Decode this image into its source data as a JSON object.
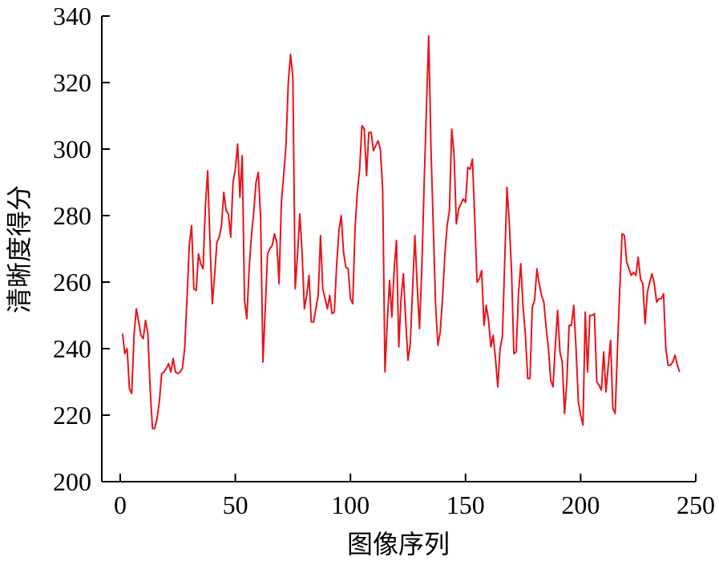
{
  "chart_data": {
    "type": "line",
    "xlabel": "图像序列",
    "ylabel": "清晰度得分",
    "xlim": [
      -8,
      250
    ],
    "ylim": [
      200,
      340
    ],
    "xticks": [
      0,
      50,
      100,
      150,
      200,
      250
    ],
    "yticks": [
      200,
      220,
      240,
      260,
      280,
      300,
      320,
      340
    ],
    "grid": false,
    "legend": "none",
    "series": [
      {
        "color": "#e8141c",
        "x": [
          1,
          2,
          3,
          4,
          5,
          6,
          7,
          8,
          9,
          10,
          11,
          12,
          13,
          14,
          15,
          16,
          17,
          18,
          19,
          20,
          21,
          22,
          23,
          24,
          25,
          26,
          27,
          28,
          29,
          30,
          31,
          32,
          33,
          34,
          35,
          36,
          37,
          38,
          39,
          40,
          41,
          42,
          43,
          44,
          45,
          46,
          47,
          48,
          49,
          50,
          51,
          52,
          53,
          54,
          55,
          56,
          57,
          58,
          59,
          60,
          61,
          62,
          63,
          64,
          65,
          66,
          67,
          68,
          69,
          70,
          71,
          72,
          73,
          74,
          75,
          76,
          77,
          78,
          79,
          80,
          81,
          82,
          83,
          84,
          85,
          86,
          87,
          88,
          89,
          90,
          91,
          92,
          93,
          94,
          95,
          96,
          97,
          98,
          99,
          100,
          101,
          102,
          103,
          104,
          105,
          106,
          107,
          108,
          109,
          110,
          111,
          112,
          113,
          114,
          115,
          116,
          117,
          118,
          119,
          120,
          121,
          122,
          123,
          124,
          125,
          126,
          127,
          128,
          129,
          130,
          131,
          132,
          133,
          134,
          135,
          136,
          137,
          138,
          139,
          140,
          141,
          142,
          143,
          144,
          145,
          146,
          147,
          148,
          149,
          150,
          151,
          152,
          153,
          154,
          155,
          156,
          157,
          158,
          159,
          160,
          161,
          162,
          163,
          164,
          165,
          166,
          167,
          168,
          169,
          170,
          171,
          172,
          173,
          174,
          175,
          176,
          177,
          178,
          179,
          180,
          181,
          182,
          183,
          184,
          185,
          186,
          187,
          188,
          189,
          190,
          191,
          192,
          193,
          194,
          195,
          196,
          197,
          198,
          199,
          200,
          201,
          202,
          203,
          204,
          205,
          206,
          207,
          208,
          209,
          210,
          211,
          212,
          213,
          214,
          215,
          216,
          217,
          218,
          219,
          220,
          221,
          222,
          223,
          224,
          225,
          226,
          227,
          228,
          229,
          230,
          231,
          232,
          233,
          234,
          235,
          236,
          237,
          238,
          239,
          240,
          241,
          242,
          243
        ],
        "y": [
          244.5,
          238.5,
          240,
          228,
          226.5,
          244,
          252,
          248,
          244,
          243,
          248.5,
          244.5,
          228,
          216,
          216,
          219,
          224,
          232.5,
          233,
          234,
          235.5,
          233,
          237,
          233,
          232.5,
          233,
          234,
          240,
          255,
          271,
          277,
          258,
          257.5,
          268.5,
          265.5,
          264,
          283,
          293.5,
          272,
          253.5,
          262,
          272,
          273.5,
          277,
          287,
          281.5,
          280.5,
          273.5,
          290,
          294,
          301.5,
          285.5,
          298,
          254.5,
          249,
          264,
          274,
          281,
          290,
          293,
          279,
          236,
          252,
          268.5,
          270,
          271,
          274.5,
          272,
          259.5,
          284,
          292,
          301,
          320,
          328.5,
          321.5,
          258,
          268,
          280.5,
          269,
          252,
          256,
          262,
          248,
          248,
          252,
          256,
          274,
          258,
          255,
          252,
          256,
          250.5,
          251,
          265,
          275.5,
          280,
          269,
          264.5,
          264,
          255,
          253.5,
          276,
          287,
          294,
          307,
          306,
          292,
          305,
          305,
          299.5,
          301,
          302.5,
          300,
          288,
          233,
          248,
          260.5,
          249.5,
          264,
          272.5,
          240.5,
          255,
          262.5,
          248.5,
          236.5,
          241.5,
          258,
          274,
          259,
          246,
          264,
          289,
          312,
          334,
          300,
          276.5,
          253,
          241,
          245,
          255,
          268,
          277,
          281.5,
          306,
          298.5,
          277.5,
          282,
          283.5,
          285,
          284,
          294.5,
          294,
          297,
          279,
          260,
          261,
          263.5,
          247,
          253,
          248.5,
          240.5,
          244,
          237,
          228.5,
          240,
          243.5,
          266,
          288.5,
          278,
          263,
          238.5,
          239,
          256.5,
          265.5,
          252.5,
          244,
          231,
          231,
          252.5,
          254.5,
          264,
          259.5,
          256,
          254,
          246.5,
          240,
          230.5,
          228.5,
          241,
          251.5,
          239,
          236,
          220.5,
          230,
          247,
          247,
          253,
          240,
          224,
          220,
          217,
          251,
          233,
          250,
          250,
          250.5,
          230,
          229,
          227.5,
          239,
          227,
          235,
          242.5,
          222,
          220.5,
          240,
          258,
          274.5,
          274,
          266,
          264,
          262,
          263,
          262,
          267.5,
          261,
          259.5,
          247.5,
          257,
          260,
          262.5,
          259.5,
          254,
          255,
          255,
          256.5,
          240,
          235,
          235,
          236,
          238,
          235,
          233
        ]
      }
    ]
  }
}
